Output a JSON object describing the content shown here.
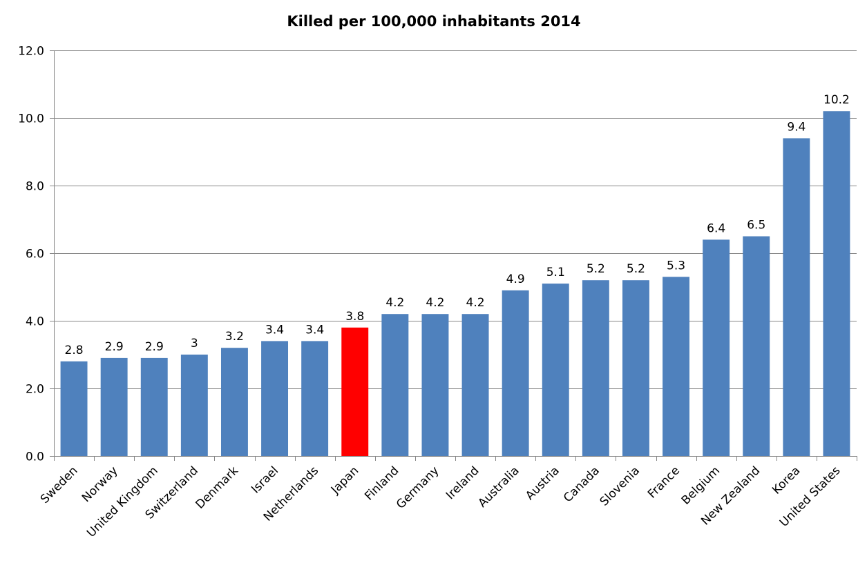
{
  "chart_data": {
    "type": "bar",
    "title": "Killed per 100,000 inhabitants 2014",
    "xlabel": "",
    "ylabel": "",
    "ylim": [
      0,
      12
    ],
    "yticks": [
      "0.0",
      "2.0",
      "4.0",
      "6.0",
      "8.0",
      "10.0",
      "12.0"
    ],
    "ytick_values": [
      0,
      2,
      4,
      6,
      8,
      10,
      12
    ],
    "grid": true,
    "legend": "none",
    "categories": [
      "Sweden",
      "Norway",
      "United Kingdom",
      "Switzerland",
      "Denmark",
      "Israel",
      "Netherlands",
      "Japan",
      "Finland",
      "Germany",
      "Ireland",
      "Australia",
      "Austria",
      "Canada",
      "Slovenia",
      "France",
      "Belgium",
      "New Zealand",
      "Korea",
      "United States"
    ],
    "values": [
      2.8,
      2.9,
      2.9,
      3,
      3.2,
      3.4,
      3.4,
      3.8,
      4.2,
      4.2,
      4.2,
      4.9,
      5.1,
      5.2,
      5.2,
      5.3,
      6.4,
      6.5,
      9.4,
      10.2
    ],
    "data_labels": [
      "2.8",
      "2.9",
      "2.9",
      "3",
      "3.2",
      "3.4",
      "3.4",
      "3.8",
      "4.2",
      "4.2",
      "4.2",
      "4.9",
      "5.1",
      "5.2",
      "5.2",
      "5.3",
      "6.4",
      "6.5",
      "9.4",
      "10.2"
    ],
    "highlight": "Japan",
    "colors": {
      "bar": "#4f81bd",
      "highlight": "#ff0000",
      "grid": "#868686",
      "axis": "#868686"
    }
  }
}
